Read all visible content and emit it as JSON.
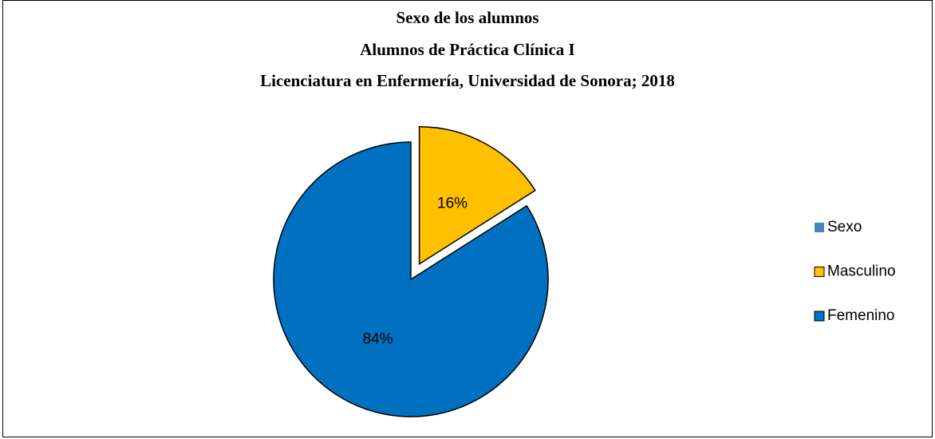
{
  "chart_data": {
    "type": "pie",
    "title": [
      "Sexo de los alumnos",
      "Alumnos de Práctica Clínica I",
      "Licenciatura en Enfermería, Universidad de Sonora; 2018"
    ],
    "categories": [
      "Sexo",
      "Masculino",
      "Femenino"
    ],
    "values": [
      null,
      16,
      84
    ],
    "value_labels": [
      null,
      "16%",
      "84%"
    ],
    "colors": [
      "#4f81bd",
      "#ffc000",
      "#0070c0"
    ],
    "exploded": [
      false,
      true,
      false
    ],
    "legend": "right"
  }
}
